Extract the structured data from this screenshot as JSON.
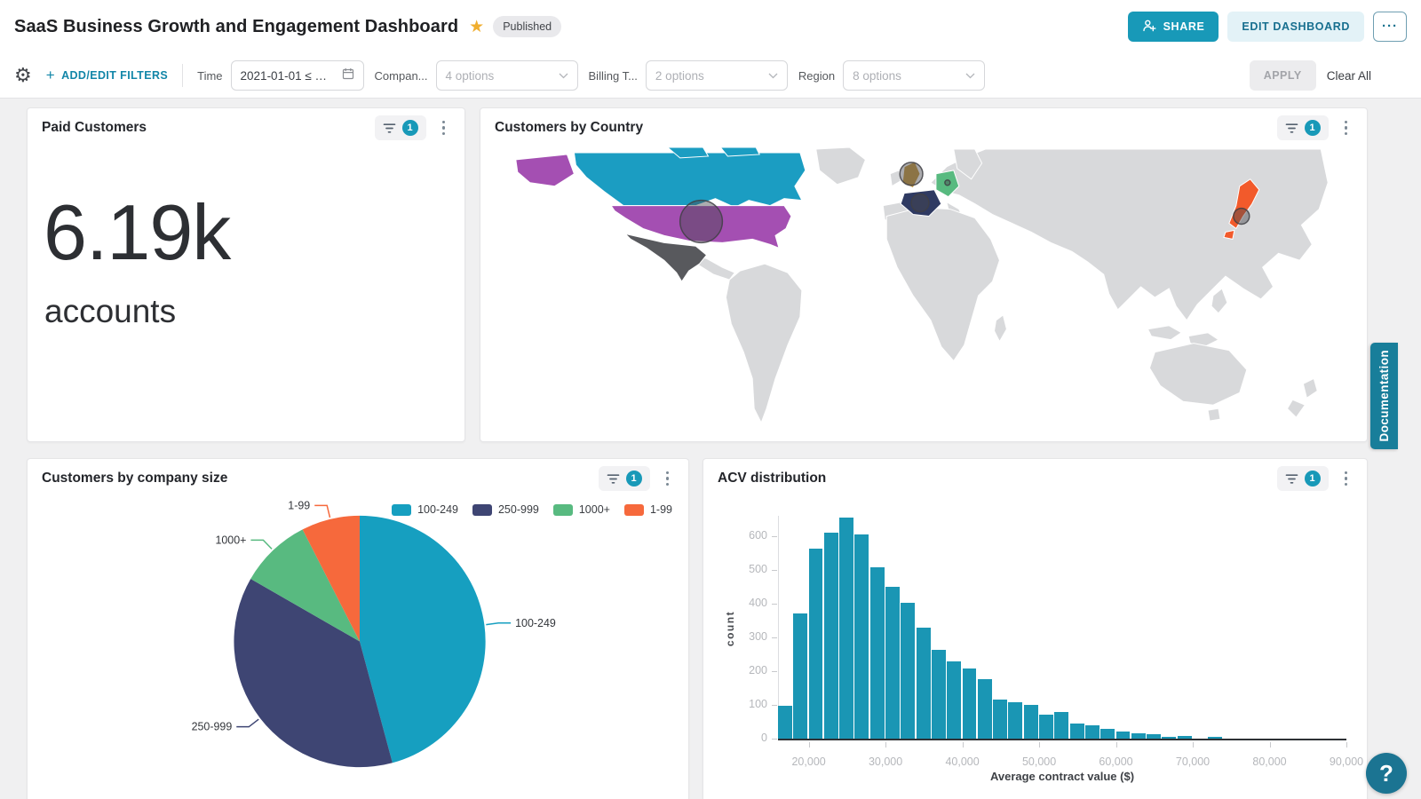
{
  "header": {
    "title": "SaaS Business Growth and Engagement Dashboard",
    "badge": "Published",
    "share": "SHARE",
    "edit": "EDIT DASHBOARD",
    "more": "···"
  },
  "filters": {
    "add_edit": "ADD/EDIT FILTERS",
    "items": [
      {
        "label": "Time",
        "value": "2021-01-01 ≤ …",
        "kind": "date"
      },
      {
        "label": "Compan...",
        "value": "4 options",
        "kind": "select"
      },
      {
        "label": "Billing T...",
        "value": "2 options",
        "kind": "select"
      },
      {
        "label": "Region",
        "value": "8 options",
        "kind": "select"
      }
    ],
    "apply": "APPLY",
    "clear": "Clear All"
  },
  "cards": {
    "kpi": {
      "title": "Paid Customers",
      "badge": "1",
      "value": "6.19k",
      "unit": "accounts"
    },
    "map": {
      "title": "Customers by Country",
      "badge": "1"
    },
    "pie": {
      "title": "Customers by company size",
      "badge": "1"
    },
    "hist": {
      "title": "ACV distribution",
      "badge": "1"
    }
  },
  "side": {
    "doc_tab": "Documentation",
    "help": "?"
  },
  "colors": {
    "accent": "#1899b8"
  },
  "chart_data": [
    {
      "type": "choropleth",
      "title": "Customers by Country",
      "base_land_color": "#d8d9db",
      "regions": [
        {
          "name": "Canada",
          "color": "#1b9dc2"
        },
        {
          "name": "United States",
          "color": "#a44fb2",
          "bubble": "large"
        },
        {
          "name": "Mexico",
          "color": "#58595d"
        },
        {
          "name": "United Kingdom",
          "color": "#c59a3f",
          "bubble": "medium"
        },
        {
          "name": "France",
          "color": "#2f3a62",
          "bubble": "small"
        },
        {
          "name": "Germany",
          "color": "#58ba80",
          "bubble": "dot"
        },
        {
          "name": "Japan",
          "color": "#f25a2b",
          "bubble": "small"
        }
      ]
    },
    {
      "type": "pie",
      "title": "Customers by company size",
      "labels": [
        "100-249",
        "250-999",
        "1000+",
        "1-99"
      ],
      "values_pct": [
        45.8,
        37.5,
        9.2,
        7.5
      ],
      "colors": [
        "#169fc0",
        "#3e4573",
        "#58ba80",
        "#f6693c"
      ],
      "legend_position": "top-right"
    },
    {
      "type": "histogram",
      "title": "ACV distribution",
      "xlabel": "Average contract value ($)",
      "ylabel": "count",
      "bar_color": "#1a96b4",
      "bin_start": 16000,
      "bin_width": 2000,
      "counts": [
        97,
        370,
        563,
        610,
        655,
        605,
        507,
        450,
        402,
        330,
        262,
        230,
        207,
        175,
        117,
        108,
        100,
        70,
        79,
        45,
        40,
        30,
        20,
        17,
        12,
        5,
        9,
        0,
        4
      ],
      "xlim": [
        16000,
        90000
      ],
      "ylim": [
        0,
        660
      ],
      "yticks": [
        0,
        100,
        200,
        300,
        400,
        500,
        600
      ],
      "xticks": [
        {
          "v": 20000,
          "label": "20,000"
        },
        {
          "v": 30000,
          "label": "30,000"
        },
        {
          "v": 40000,
          "label": "40,000"
        },
        {
          "v": 50000,
          "label": "50,000"
        },
        {
          "v": 60000,
          "label": "60,000"
        },
        {
          "v": 70000,
          "label": "70,000"
        },
        {
          "v": 80000,
          "label": "80,000"
        },
        {
          "v": 90000,
          "label": "90,000"
        }
      ]
    }
  ]
}
